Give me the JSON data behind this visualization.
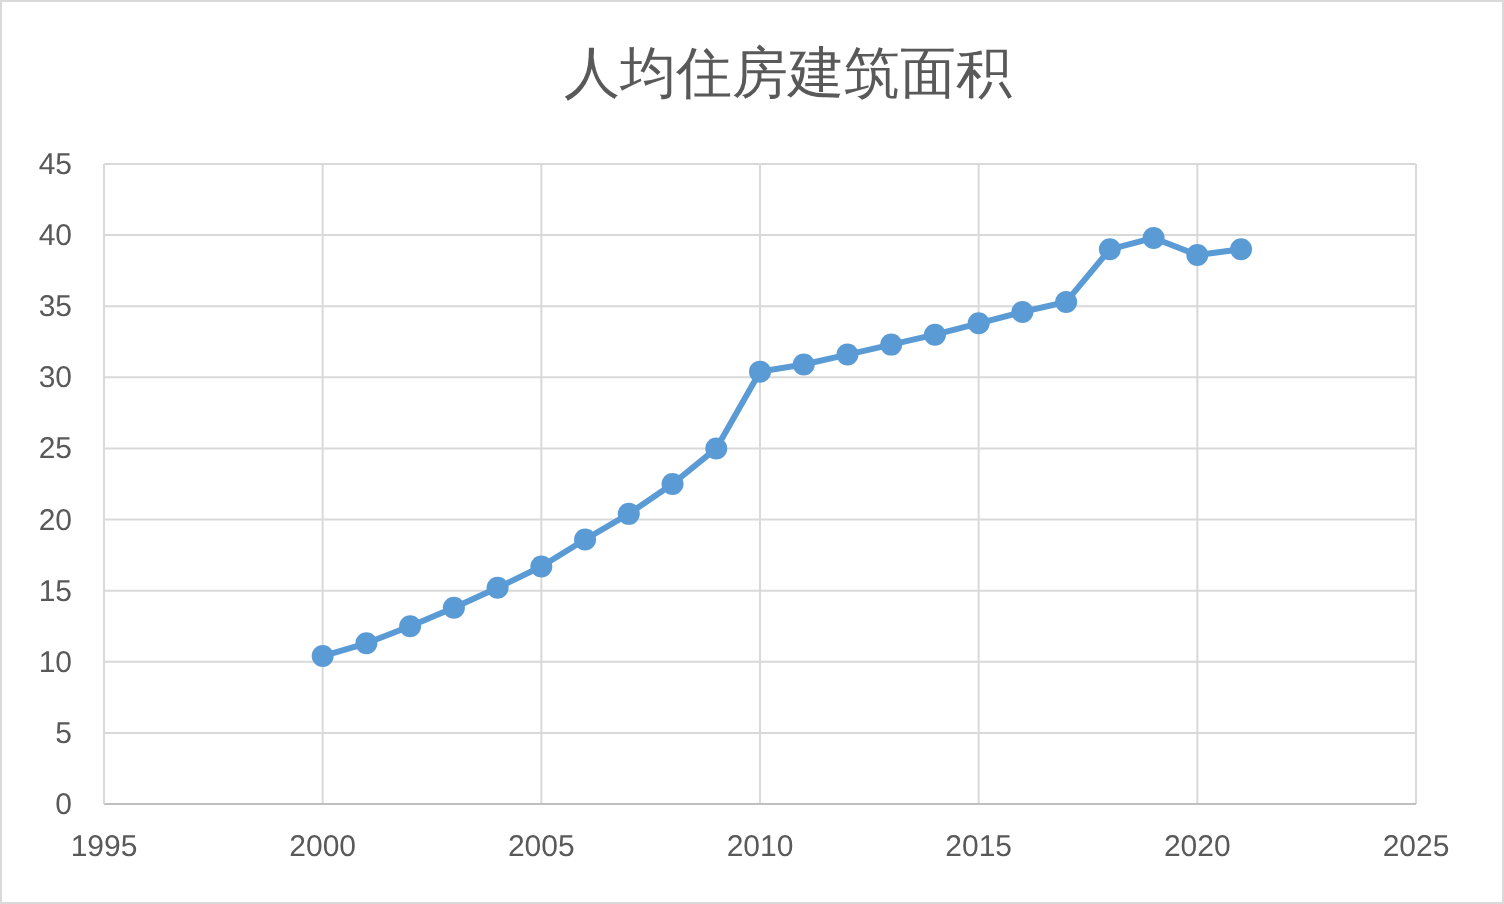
{
  "chart_data": {
    "type": "line",
    "title": "人均住房建筑面积",
    "x": [
      2000,
      2001,
      2002,
      2003,
      2004,
      2005,
      2006,
      2007,
      2008,
      2009,
      2010,
      2011,
      2012,
      2013,
      2014,
      2015,
      2016,
      2017,
      2018,
      2019,
      2020,
      2021
    ],
    "series": [
      {
        "color": "#5b9bd5",
        "marker": "circle",
        "values": [
          10.4,
          11.3,
          12.5,
          13.8,
          15.2,
          16.7,
          18.6,
          20.4,
          22.5,
          25.0,
          30.4,
          30.9,
          31.6,
          32.3,
          33.0,
          33.8,
          34.6,
          35.3,
          39.0,
          39.8,
          38.6,
          39.0
        ]
      }
    ],
    "xlim": [
      1995,
      2025
    ],
    "xticks": [
      1995,
      2000,
      2005,
      2010,
      2015,
      2020,
      2025
    ],
    "ylim": [
      0,
      45
    ],
    "yticks": [
      0,
      5,
      10,
      15,
      20,
      25,
      30,
      35,
      40,
      45
    ],
    "grid": true
  }
}
